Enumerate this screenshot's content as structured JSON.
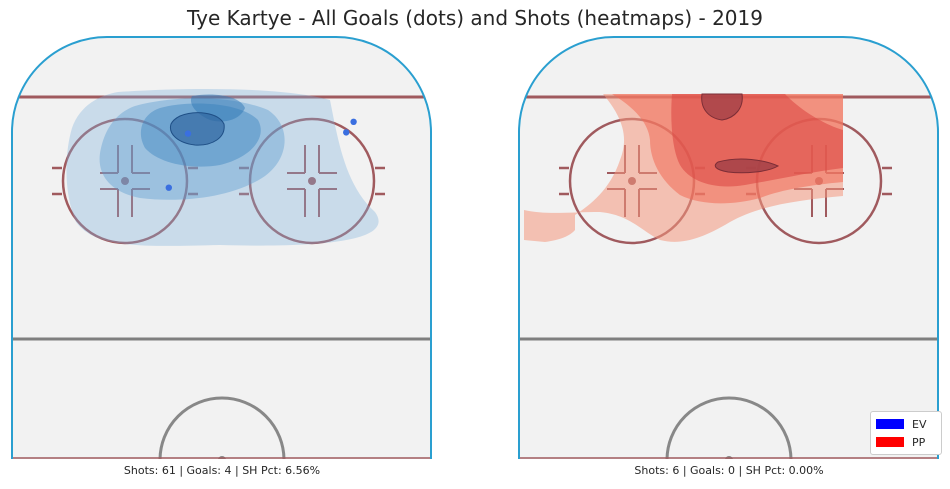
{
  "title": "Tye Kartye - All Goals (dots) and Shots (heatmaps) - 2019",
  "colors": {
    "rink_border": "#2a9fd0",
    "goal_line": "#a05a5e",
    "faceoff": "#a05a5e",
    "center_line": "#7f7f7f",
    "ice": "#f2f2f2",
    "ev": "#0000ff",
    "pp": "#ff0000"
  },
  "panels": [
    {
      "caption": "Shots: 61 | Goals: 4 | SH Pct: 6.56%",
      "strength": "EV",
      "shots": 61,
      "goals": 4,
      "sh_pct": 6.56
    },
    {
      "caption": "Shots: 6 | Goals: 0 | SH Pct: 0.00%",
      "strength": "PP",
      "shots": 6,
      "goals": 0,
      "sh_pct": 0.0
    }
  ],
  "legend": {
    "placement": "lower-right",
    "entries": [
      {
        "label": "EV",
        "color": "#0000ff"
      },
      {
        "label": "PP",
        "color": "#ff0000"
      }
    ]
  },
  "chart_data": {
    "type": "heatmap",
    "title": "Tye Kartye - All Goals (dots) and Shots (heatmaps) - 2019",
    "xlim": [
      -42.5,
      42.5
    ],
    "ylim": [
      0,
      100
    ],
    "axes": "off",
    "grid": false,
    "series": [
      {
        "name": "EV",
        "goals": [
          {
            "x": -6.8,
            "y": 77.1
          },
          {
            "x": 26.8,
            "y": 79.9
          },
          {
            "x": 25.3,
            "y": 77.4
          },
          {
            "x": -10.7,
            "y": 64.3
          }
        ]
      },
      {
        "name": "PP",
        "goals": []
      }
    ]
  }
}
